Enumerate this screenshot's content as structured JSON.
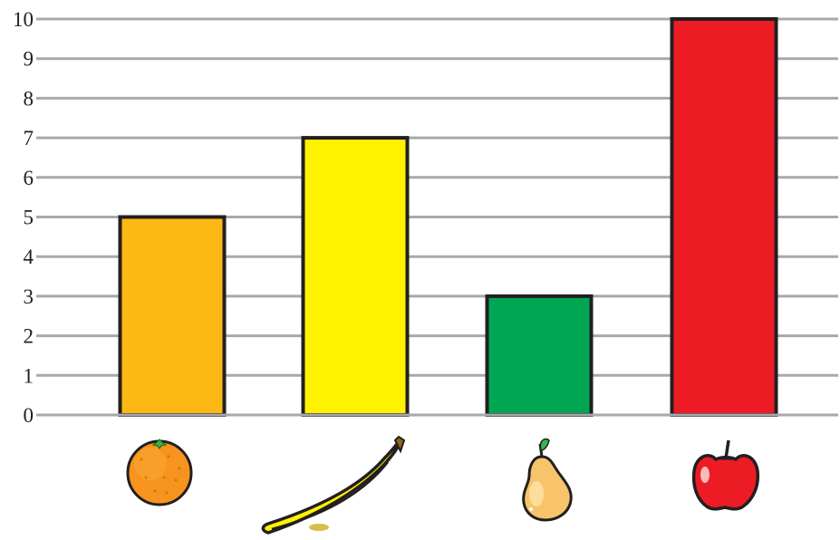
{
  "chart_data": {
    "type": "bar",
    "categories": [
      "orange",
      "banana",
      "pear",
      "apple"
    ],
    "values": [
      5,
      7,
      3,
      10
    ],
    "colors": [
      "#fdb913",
      "#fff200",
      "#00a651",
      "#ed1c24"
    ],
    "category_icons": [
      "orange-icon",
      "banana-icon",
      "pear-icon",
      "apple-icon"
    ],
    "ylim": [
      0,
      10
    ],
    "yticks": [
      "0",
      "1",
      "2",
      "3",
      "4",
      "5",
      "6",
      "7",
      "8",
      "9",
      "10"
    ],
    "grid": true,
    "legend": "none"
  }
}
